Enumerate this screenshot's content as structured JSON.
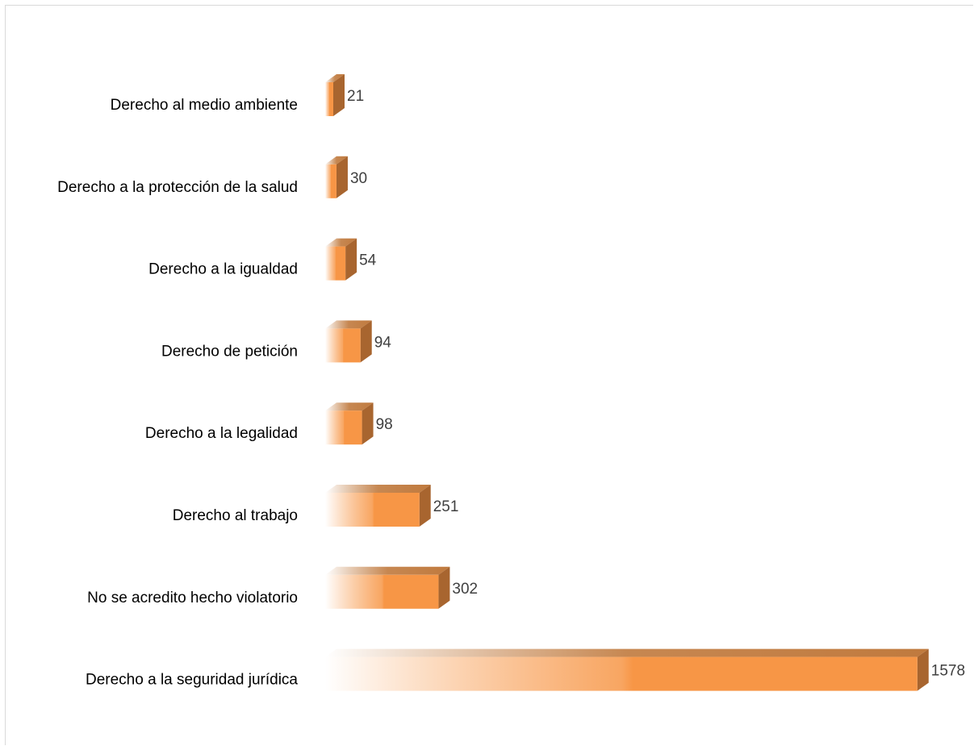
{
  "chart_data": {
    "type": "bar",
    "orientation": "horizontal",
    "categories": [
      "Derecho al medio ambiente",
      "Derecho a la protección de la salud",
      "Derecho a la igualdad",
      "Derecho de petición",
      "Derecho a la legalidad",
      "Derecho al trabajo",
      "No se acredito hecho violatorio",
      "Derecho a la seguridad jurídica"
    ],
    "values": [
      21,
      30,
      54,
      94,
      98,
      251,
      302,
      1578
    ],
    "value_labels": [
      "21",
      "30",
      "54",
      "94",
      "98",
      "251",
      "302",
      "1578"
    ],
    "title": "",
    "xlabel": "",
    "ylabel": "",
    "grid": false,
    "legend": "none",
    "style": "3d-gradient",
    "colors": {
      "bar_front": "#f79646",
      "bar_top": "#c07a3e",
      "bar_side": "#a8652f",
      "value_label": "#404040",
      "category_label": "#000000",
      "frame": "#d9d9d9"
    }
  }
}
